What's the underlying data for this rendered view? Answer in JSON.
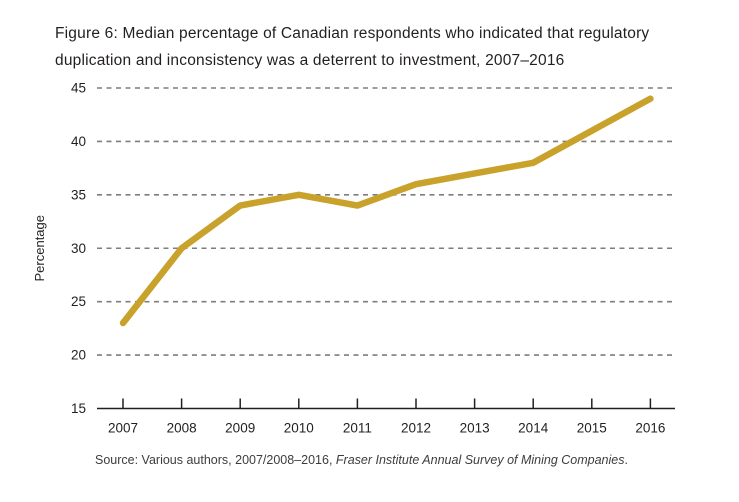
{
  "figure": {
    "title": "Figure 6: Median percentage of Canadian respondents who indicated that regulatory duplication and inconsistency was a deterrent to investment, 2007–2016",
    "source_prefix": "Source: Various authors, 2007/2008–2016, ",
    "source_italic": "Fraser Institute Annual Survey of Mining Companies",
    "source_suffix": "."
  },
  "chart_data": {
    "type": "line",
    "categories": [
      "2007",
      "2008",
      "2009",
      "2010",
      "2011",
      "2012",
      "2013",
      "2014",
      "2015",
      "2016"
    ],
    "values": [
      23,
      30,
      34,
      35,
      34,
      36,
      37,
      38,
      41,
      44
    ],
    "title": "Figure 6: Median percentage of Canadian respondents who indicated that regulatory duplication and inconsistency was a deterrent to investment, 2007–2016",
    "xlabel": "",
    "ylabel": "Percentage",
    "ylim": [
      15,
      45
    ],
    "yticks": [
      15,
      20,
      25,
      30,
      35,
      40,
      45
    ],
    "grid": "dashed-horizontal",
    "legend": "none",
    "line_color": "#C9A22C",
    "axis_color": "#231f20",
    "grid_color": "#7d7d7d",
    "tick_label_color": "#231f20"
  }
}
